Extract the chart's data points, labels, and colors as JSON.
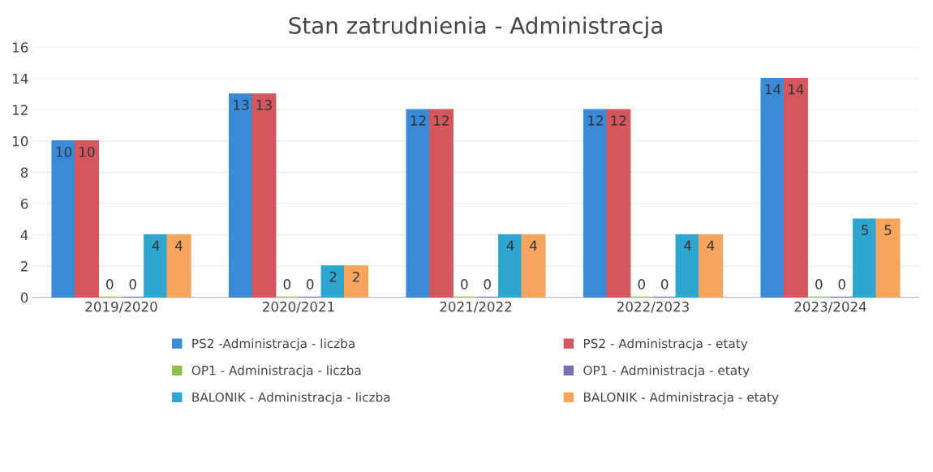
{
  "chart_data": {
    "type": "bar",
    "title": "Stan zatrudnienia - Administracja",
    "categories": [
      "2019/2020",
      "2020/2021",
      "2021/2022",
      "2022/2023",
      "2023/2024"
    ],
    "series": [
      {
        "name": "PS2 -Administracja - liczba",
        "color": "#3b8ad8",
        "values": [
          10,
          13,
          12,
          12,
          14
        ]
      },
      {
        "name": "PS2 - Administracja - etaty",
        "color": "#d4575e",
        "values": [
          10,
          13,
          12,
          12,
          14
        ]
      },
      {
        "name": "OP1 - Administracja - liczba",
        "color": "#8fbf4f",
        "values": [
          0,
          0,
          0,
          0,
          0
        ]
      },
      {
        "name": "OP1 - Administracja - etaty",
        "color": "#7e6bb5",
        "values": [
          0,
          0,
          0,
          0,
          0
        ]
      },
      {
        "name": "BALONIK - Administracja - liczba",
        "color": "#2fa6d0",
        "values": [
          4,
          2,
          4,
          4,
          5
        ]
      },
      {
        "name": "BALONIK - Administracja - etaty",
        "color": "#f7a55e",
        "values": [
          4,
          2,
          4,
          4,
          5
        ]
      }
    ],
    "ylim": [
      0,
      16
    ],
    "yticks": [
      0,
      2,
      4,
      6,
      8,
      10,
      12,
      14,
      16
    ],
    "grid": "y",
    "legend": "bottom",
    "data_labels": true
  }
}
